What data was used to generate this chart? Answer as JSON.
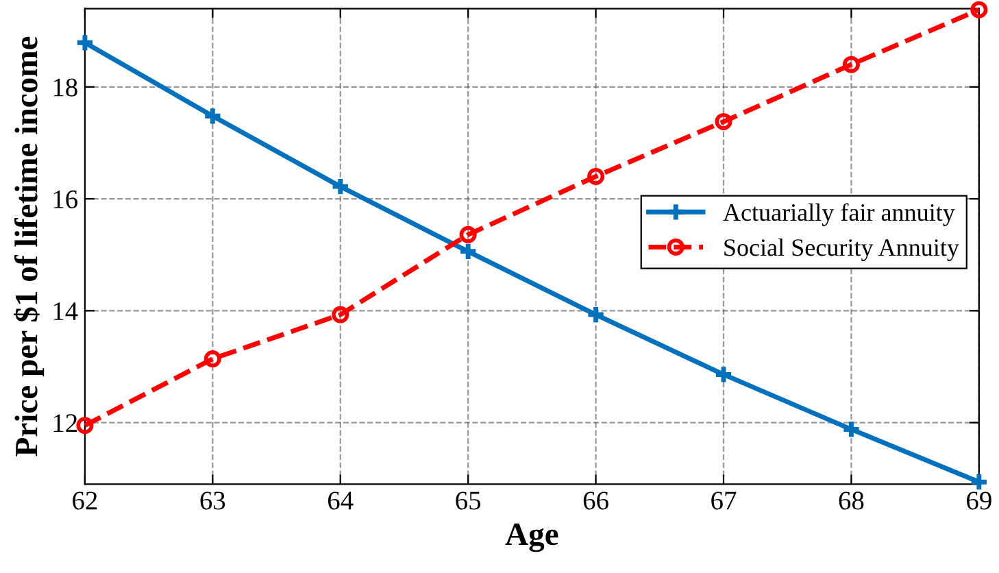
{
  "chart_data": {
    "type": "line",
    "xlabel": "Age",
    "ylabel": "Price per $1 of lifetime income",
    "x": [
      62,
      63,
      64,
      65,
      66,
      67,
      68,
      69
    ],
    "xlim": [
      62,
      69
    ],
    "xticks": [
      62,
      63,
      64,
      65,
      66,
      67,
      68,
      69
    ],
    "ylim": [
      10.9,
      19.4
    ],
    "yticks": [
      12,
      14,
      16,
      18
    ],
    "grid": true,
    "legend": "right",
    "series": [
      {
        "name": "Actuarially fair annuity",
        "color": "#0072bd",
        "marker": "cross",
        "line_style": "solid",
        "values": [
          18.79,
          17.48,
          16.22,
          15.06,
          13.93,
          12.86,
          11.88,
          10.94
        ]
      },
      {
        "name": "Social Security Annuity",
        "color": "#ff0000",
        "marker": "circle",
        "line_style": "dashed",
        "values": [
          11.95,
          13.14,
          13.93,
          15.36,
          16.4,
          17.38,
          18.4,
          19.38
        ]
      }
    ]
  }
}
